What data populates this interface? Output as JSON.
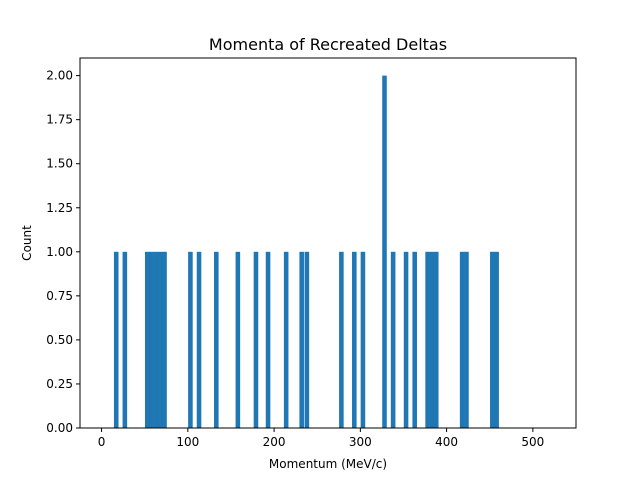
{
  "chart_data": {
    "type": "bar",
    "title": "Momenta of Recreated Deltas",
    "xlabel": "Momentum (MeV/c)",
    "ylabel": "Count",
    "xlim": [
      -25,
      550
    ],
    "ylim": [
      0,
      2.1
    ],
    "xticks": [
      0,
      100,
      200,
      300,
      400,
      500
    ],
    "yticks": [
      0.0,
      0.25,
      0.5,
      0.75,
      1.0,
      1.25,
      1.5,
      1.75,
      2.0
    ],
    "ytick_labels": [
      "0.00",
      "0.25",
      "0.50",
      "0.75",
      "1.00",
      "1.25",
      "1.50",
      "1.75",
      "2.00"
    ],
    "bin_width": 5.3,
    "grid": false,
    "color": "#1f77b4",
    "bins": [
      {
        "x": 17,
        "count": 1
      },
      {
        "x": 27,
        "count": 1
      },
      {
        "x": 53,
        "count": 1
      },
      {
        "x": 58,
        "count": 1
      },
      {
        "x": 63,
        "count": 1
      },
      {
        "x": 68,
        "count": 1
      },
      {
        "x": 73,
        "count": 1
      },
      {
        "x": 103,
        "count": 1
      },
      {
        "x": 113,
        "count": 1
      },
      {
        "x": 133,
        "count": 1
      },
      {
        "x": 158,
        "count": 1
      },
      {
        "x": 179,
        "count": 1
      },
      {
        "x": 193,
        "count": 1
      },
      {
        "x": 214,
        "count": 1
      },
      {
        "x": 232,
        "count": 1
      },
      {
        "x": 238,
        "count": 1
      },
      {
        "x": 278,
        "count": 1
      },
      {
        "x": 293,
        "count": 1
      },
      {
        "x": 303,
        "count": 1
      },
      {
        "x": 328,
        "count": 2
      },
      {
        "x": 338,
        "count": 1
      },
      {
        "x": 353,
        "count": 1
      },
      {
        "x": 363,
        "count": 1
      },
      {
        "x": 378,
        "count": 1
      },
      {
        "x": 383,
        "count": 1
      },
      {
        "x": 388,
        "count": 1
      },
      {
        "x": 418,
        "count": 1
      },
      {
        "x": 423,
        "count": 1
      },
      {
        "x": 453,
        "count": 1
      },
      {
        "x": 458,
        "count": 1
      }
    ]
  }
}
